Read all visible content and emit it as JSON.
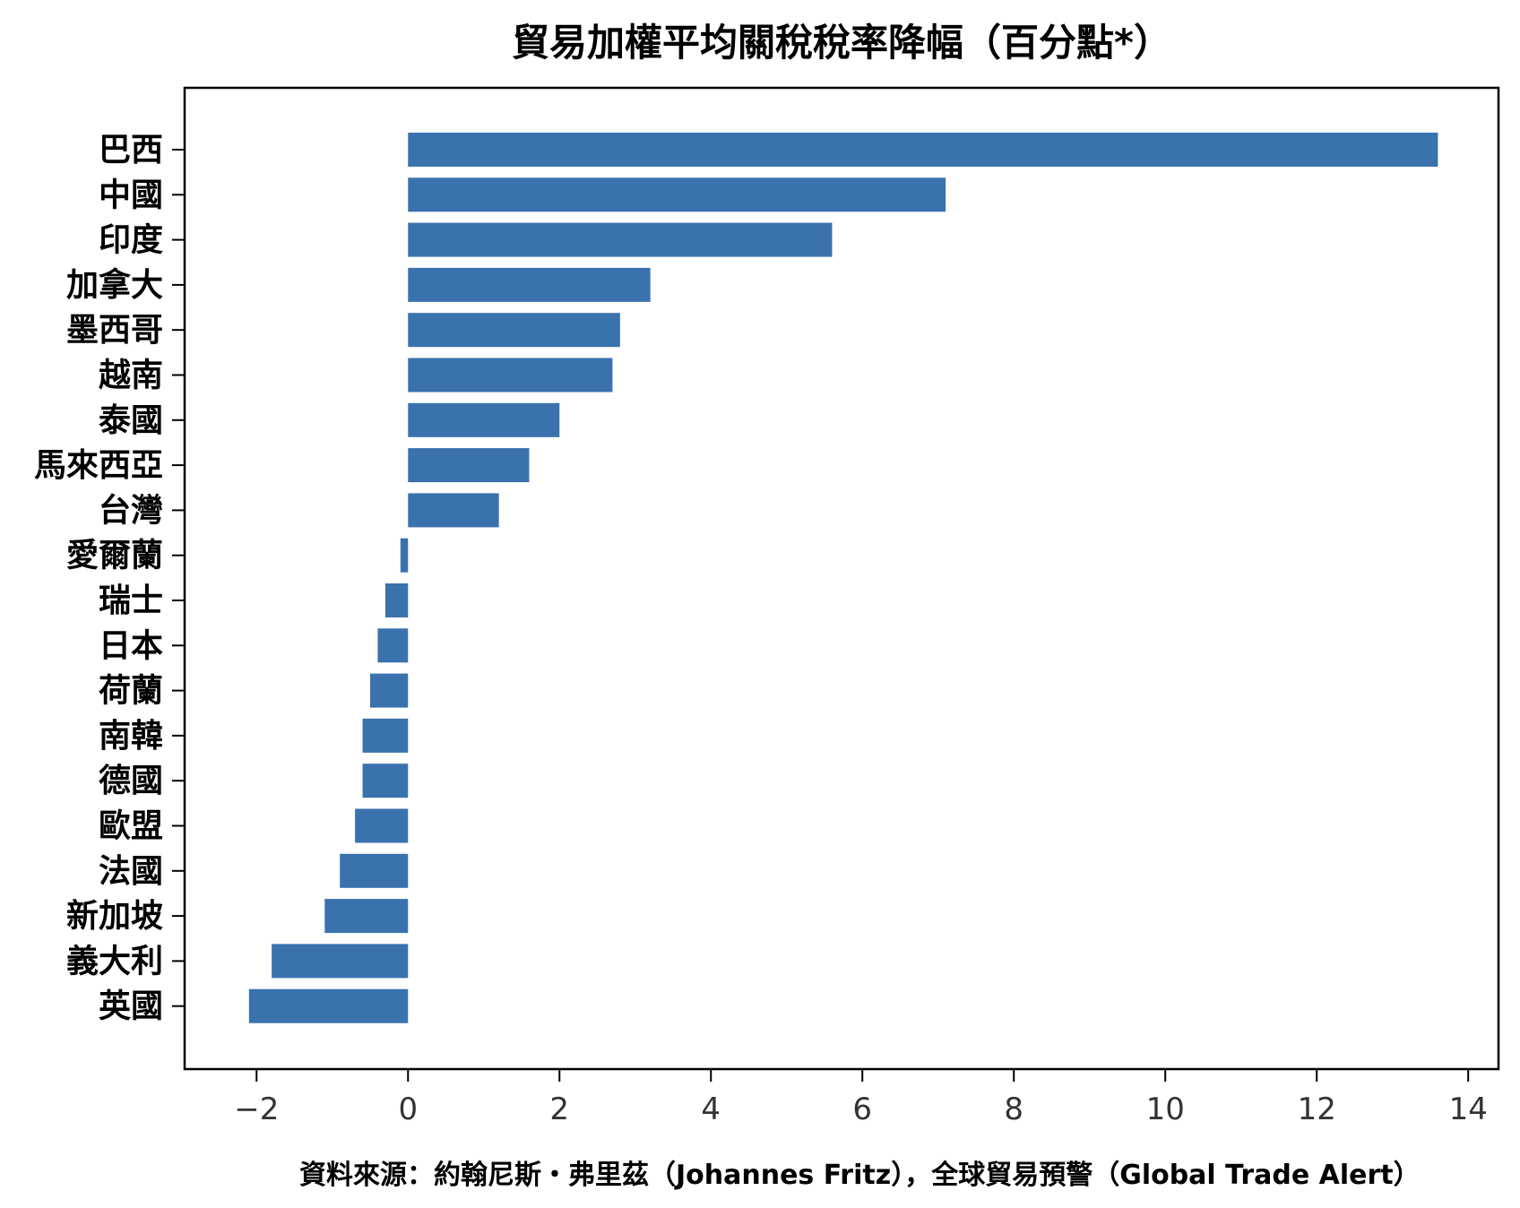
{
  "chart_data": {
    "type": "bar",
    "orientation": "horizontal",
    "title": "貿易加權平均關稅稅率降幅（百分點*）",
    "source": "資料來源：約翰尼斯・弗里茲（Johannes Fritz），全球貿易預警（Global Trade Alert）",
    "categories": [
      "巴西",
      "中國",
      "印度",
      "加拿大",
      "墨西哥",
      "越南",
      "泰國",
      "馬來西亞",
      "台灣",
      "愛爾蘭",
      "瑞士",
      "日本",
      "荷蘭",
      "南韓",
      "德國",
      "歐盟",
      "法國",
      "新加坡",
      "義大利",
      "英國"
    ],
    "values": [
      13.6,
      7.1,
      5.6,
      3.2,
      2.8,
      2.7,
      2.0,
      1.6,
      1.2,
      -0.1,
      -0.3,
      -0.4,
      -0.5,
      -0.6,
      -0.6,
      -0.7,
      -0.9,
      -1.1,
      -1.8,
      -2.1
    ],
    "xlim": [
      -2.95,
      14.4
    ],
    "xticks": [
      -2,
      0,
      2,
      4,
      6,
      8,
      10,
      12,
      14
    ],
    "xtick_labels": [
      "−2",
      "0",
      "2",
      "4",
      "6",
      "8",
      "10",
      "12",
      "14"
    ],
    "bar_color": "#3a72ad",
    "grid": false,
    "legend": "none"
  }
}
